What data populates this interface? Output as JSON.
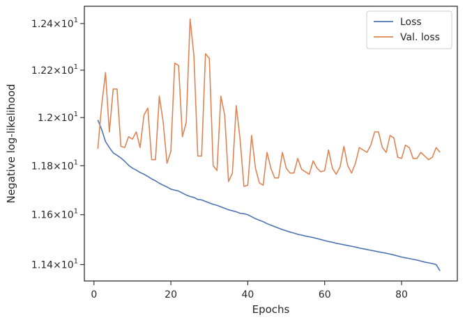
{
  "chart_data": {
    "type": "line",
    "title": "",
    "xlabel": "Epochs",
    "ylabel": "Negative log-likelihood",
    "xlim": [
      -2.5,
      94.5
    ],
    "ylim": [
      11.335,
      12.475
    ],
    "yscale": "log",
    "grid": false,
    "legend_position": "top-right",
    "x_ticks": [
      0,
      20,
      40,
      60,
      80
    ],
    "x_tick_labels": [
      "0",
      "20",
      "40",
      "60",
      "80"
    ],
    "y_ticks": [
      {
        "value": 11.4,
        "mantissa": "1.14",
        "times": "×",
        "base": "10",
        "exponent": "1"
      },
      {
        "value": 11.6,
        "mantissa": "1.16",
        "times": "×",
        "base": "10",
        "exponent": "1"
      },
      {
        "value": 11.8,
        "mantissa": "1.18",
        "times": "×",
        "base": "10",
        "exponent": "1"
      },
      {
        "value": 12.0,
        "mantissa": "1.2",
        "times": "×",
        "base": "10",
        "exponent": "1"
      },
      {
        "value": 12.2,
        "mantissa": "1.22",
        "times": "×",
        "base": "10",
        "exponent": "1"
      },
      {
        "value": 12.4,
        "mantissa": "1.24",
        "times": "×",
        "base": "10",
        "exponent": "1"
      }
    ],
    "x": [
      1,
      2,
      3,
      4,
      5,
      6,
      7,
      8,
      9,
      10,
      11,
      12,
      13,
      14,
      15,
      16,
      17,
      18,
      19,
      20,
      21,
      22,
      23,
      24,
      25,
      26,
      27,
      28,
      29,
      30,
      31,
      32,
      33,
      34,
      35,
      36,
      37,
      38,
      39,
      40,
      41,
      42,
      43,
      44,
      45,
      46,
      47,
      48,
      49,
      50,
      51,
      52,
      53,
      54,
      55,
      56,
      57,
      58,
      59,
      60,
      61,
      62,
      63,
      64,
      65,
      66,
      67,
      68,
      69,
      70,
      71,
      72,
      73,
      74,
      75,
      76,
      77,
      78,
      79,
      80,
      81,
      82,
      83,
      84,
      85,
      86,
      87,
      88,
      89,
      90
    ],
    "series": [
      {
        "name": "Loss",
        "color": "#4c72b0",
        "values": [
          11.99,
          11.95,
          11.9,
          11.875,
          11.853,
          11.843,
          11.832,
          11.818,
          11.802,
          11.79,
          11.782,
          11.772,
          11.765,
          11.756,
          11.746,
          11.738,
          11.728,
          11.72,
          11.713,
          11.704,
          11.7,
          11.696,
          11.688,
          11.68,
          11.674,
          11.67,
          11.662,
          11.66,
          11.654,
          11.648,
          11.642,
          11.638,
          11.632,
          11.626,
          11.62,
          11.616,
          11.612,
          11.606,
          11.604,
          11.6,
          11.592,
          11.584,
          11.578,
          11.572,
          11.564,
          11.558,
          11.552,
          11.546,
          11.54,
          11.535,
          11.53,
          11.526,
          11.521,
          11.518,
          11.514,
          11.511,
          11.508,
          11.504,
          11.5,
          11.496,
          11.492,
          11.489,
          11.485,
          11.482,
          11.479,
          11.476,
          11.473,
          11.47,
          11.466,
          11.463,
          11.46,
          11.457,
          11.454,
          11.451,
          11.448,
          11.445,
          11.442,
          11.438,
          11.434,
          11.43,
          11.427,
          11.424,
          11.421,
          11.418,
          11.414,
          11.41,
          11.407,
          11.404,
          11.4,
          11.375
        ]
      },
      {
        "name": "Val. loss",
        "color": "#dd8452",
        "values": [
          11.87,
          12.05,
          12.19,
          11.94,
          12.12,
          12.12,
          11.88,
          11.875,
          11.92,
          11.91,
          11.94,
          11.875,
          12.01,
          12.04,
          11.825,
          11.825,
          12.09,
          11.98,
          11.81,
          11.86,
          12.23,
          12.22,
          11.92,
          11.98,
          12.42,
          12.26,
          11.84,
          11.84,
          12.27,
          12.25,
          11.8,
          11.78,
          12.09,
          12.01,
          11.735,
          11.77,
          12.05,
          11.91,
          11.715,
          11.72,
          11.925,
          11.79,
          11.73,
          11.72,
          11.855,
          11.79,
          11.75,
          11.75,
          11.855,
          11.79,
          11.77,
          11.77,
          11.83,
          11.785,
          11.775,
          11.765,
          11.82,
          11.79,
          11.775,
          11.78,
          11.865,
          11.79,
          11.765,
          11.795,
          11.88,
          11.8,
          11.77,
          11.81,
          11.875,
          11.865,
          11.855,
          11.885,
          11.94,
          11.94,
          11.875,
          11.855,
          11.925,
          11.915,
          11.835,
          11.83,
          11.885,
          11.875,
          11.83,
          11.83,
          11.855,
          11.84,
          11.825,
          11.835,
          11.875,
          11.855
        ]
      }
    ]
  }
}
